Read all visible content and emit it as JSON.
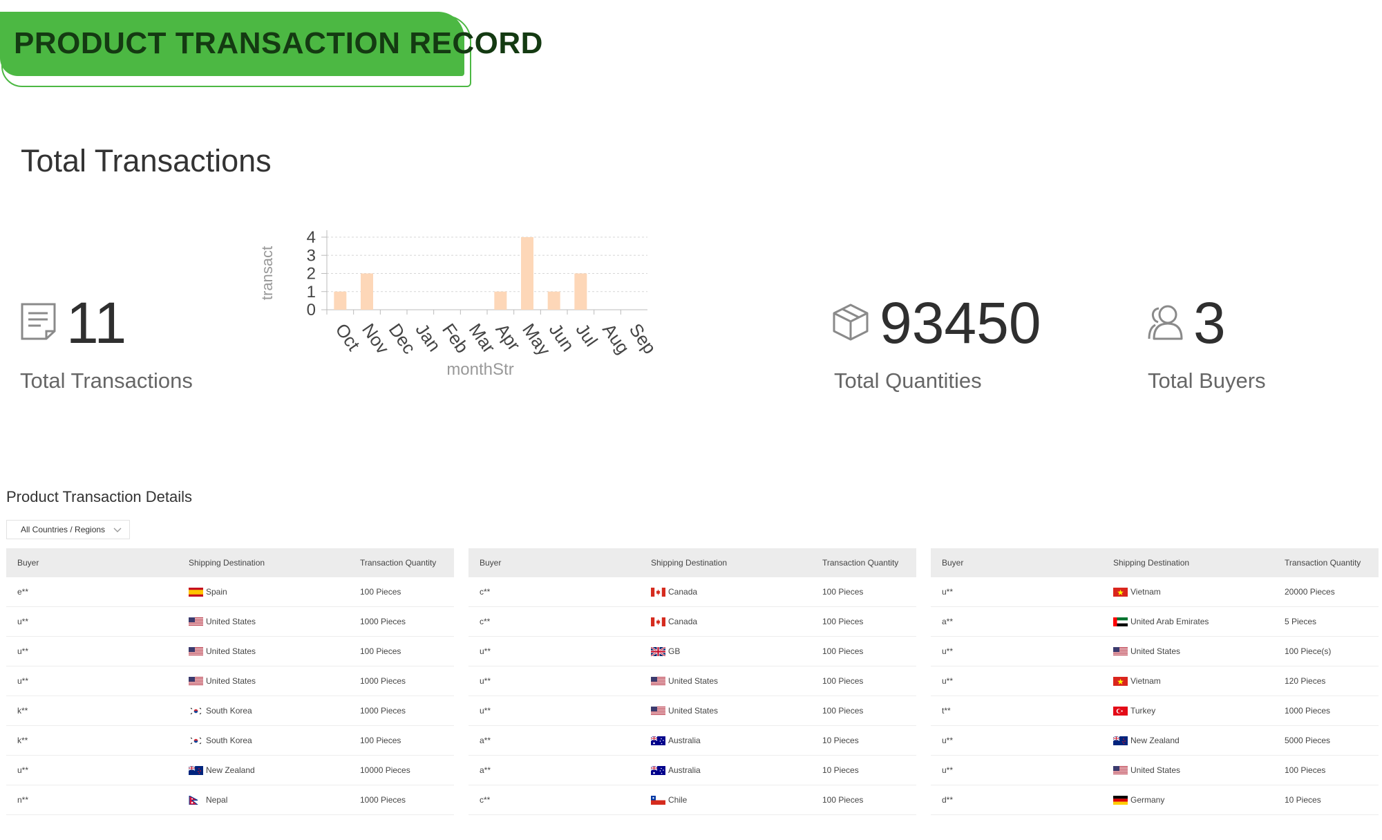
{
  "banner": {
    "title": "PRODUCT TRANSACTION RECORD"
  },
  "section_title": "Total Transactions",
  "stats": {
    "transactions": {
      "value": "11",
      "label": "Total Transactions",
      "icon": "document-icon"
    },
    "quantities": {
      "value": "93450",
      "label": "Total Quantities",
      "icon": "box-icon"
    },
    "buyers": {
      "value": "3",
      "label": "Total Buyers",
      "icon": "users-icon"
    }
  },
  "chart_data": {
    "type": "bar",
    "categories": [
      "Oct",
      "Nov",
      "Dec",
      "Jan",
      "Feb",
      "Mar",
      "Apr",
      "May",
      "Jun",
      "Jul",
      "Aug",
      "Sep"
    ],
    "values": [
      1,
      2,
      0,
      0,
      0,
      0,
      1,
      4,
      1,
      2,
      0,
      0
    ],
    "xlabel": "monthStr",
    "ylabel": "transact",
    "ylim": [
      0,
      4
    ],
    "yticks": [
      0,
      1,
      2,
      3,
      4
    ],
    "grid": true,
    "bar_color": "#fdd7b8"
  },
  "details": {
    "title": "Product Transaction Details",
    "filter_label": "All Countries / Regions",
    "columns": [
      "Buyer",
      "Shipping Destination",
      "Transaction Quantity"
    ],
    "tables": [
      {
        "rows": [
          {
            "buyer": "e**",
            "country": "Spain",
            "flag": "es",
            "qty": "100 Pieces"
          },
          {
            "buyer": "u**",
            "country": "United States",
            "flag": "us",
            "qty": "1000 Pieces"
          },
          {
            "buyer": "u**",
            "country": "United States",
            "flag": "us",
            "qty": "100 Pieces"
          },
          {
            "buyer": "u**",
            "country": "United States",
            "flag": "us",
            "qty": "1000 Pieces"
          },
          {
            "buyer": "k**",
            "country": "South Korea",
            "flag": "kr",
            "qty": "1000 Pieces"
          },
          {
            "buyer": "k**",
            "country": "South Korea",
            "flag": "kr",
            "qty": "100 Pieces"
          },
          {
            "buyer": "u**",
            "country": "New Zealand",
            "flag": "nz",
            "qty": "10000 Pieces"
          },
          {
            "buyer": "n**",
            "country": "Nepal",
            "flag": "np",
            "qty": "1000 Pieces"
          }
        ]
      },
      {
        "rows": [
          {
            "buyer": "c**",
            "country": "Canada",
            "flag": "ca",
            "qty": "100 Pieces"
          },
          {
            "buyer": "c**",
            "country": "Canada",
            "flag": "ca",
            "qty": "100 Pieces"
          },
          {
            "buyer": "u**",
            "country": "GB",
            "flag": "gb",
            "qty": "100 Pieces"
          },
          {
            "buyer": "u**",
            "country": "United States",
            "flag": "us",
            "qty": "100 Pieces"
          },
          {
            "buyer": "u**",
            "country": "United States",
            "flag": "us",
            "qty": "100 Pieces"
          },
          {
            "buyer": "a**",
            "country": "Australia",
            "flag": "au",
            "qty": "10 Pieces"
          },
          {
            "buyer": "a**",
            "country": "Australia",
            "flag": "au",
            "qty": "10 Pieces"
          },
          {
            "buyer": "c**",
            "country": "Chile",
            "flag": "cl",
            "qty": "100 Pieces"
          }
        ]
      },
      {
        "rows": [
          {
            "buyer": "u**",
            "country": "Vietnam",
            "flag": "vn",
            "qty": "20000 Pieces"
          },
          {
            "buyer": "a**",
            "country": "United Arab Emirates",
            "flag": "ae",
            "qty": "5 Pieces"
          },
          {
            "buyer": "u**",
            "country": "United States",
            "flag": "us",
            "qty": "100 Piece(s)"
          },
          {
            "buyer": "u**",
            "country": "Vietnam",
            "flag": "vn",
            "qty": "120 Pieces"
          },
          {
            "buyer": "t**",
            "country": "Turkey",
            "flag": "tr",
            "qty": "1000 Pieces"
          },
          {
            "buyer": "u**",
            "country": "New Zealand",
            "flag": "nz",
            "qty": "5000 Pieces"
          },
          {
            "buyer": "u**",
            "country": "United States",
            "flag": "us",
            "qty": "100 Pieces"
          },
          {
            "buyer": "d**",
            "country": "Germany",
            "flag": "de",
            "qty": "10 Pieces"
          }
        ]
      }
    ]
  }
}
